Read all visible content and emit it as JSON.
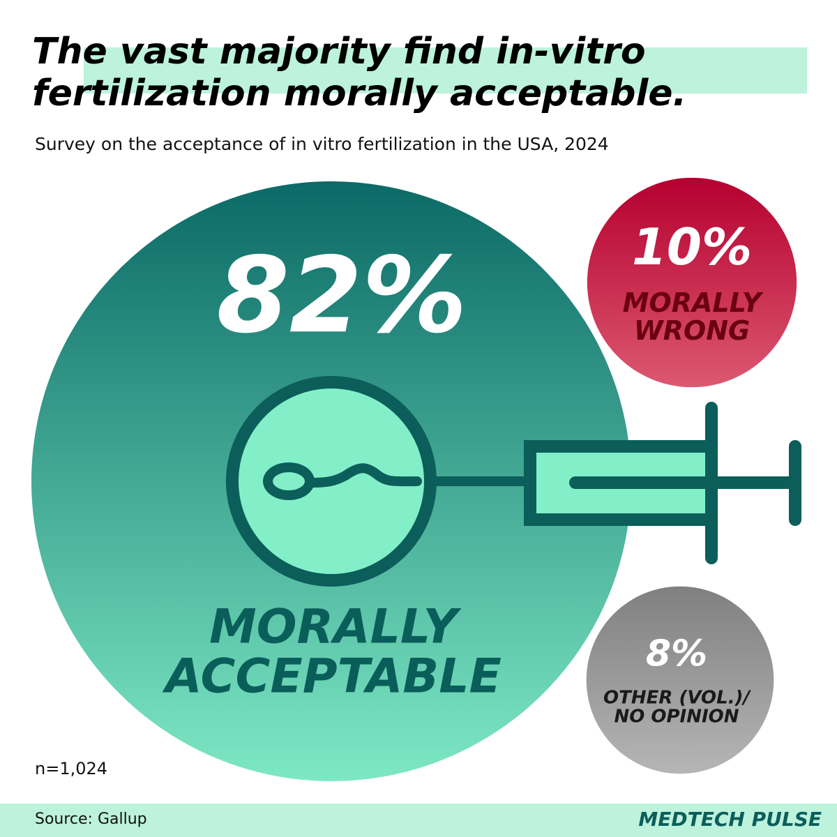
{
  "chart_data": {
    "type": "bubble",
    "title": "The vast majority find in-vitro fertilization morally acceptable.",
    "subtitle": "Survey on the acceptance of in vitro fertilization in the USA, 2024",
    "categories": [
      "MORALLY ACCEPTABLE",
      "MORALLY WRONG",
      "OTHER (VOL.)/ NO OPINION"
    ],
    "values": [
      82,
      10,
      8
    ],
    "value_labels": [
      "82%",
      "10%",
      "8%"
    ],
    "colors": [
      "#0b6a66",
      "#b5002f",
      "#808080"
    ],
    "sample": "n=1,024",
    "source": "Source: Gallup",
    "brand": "MEDTECH PULSE"
  }
}
